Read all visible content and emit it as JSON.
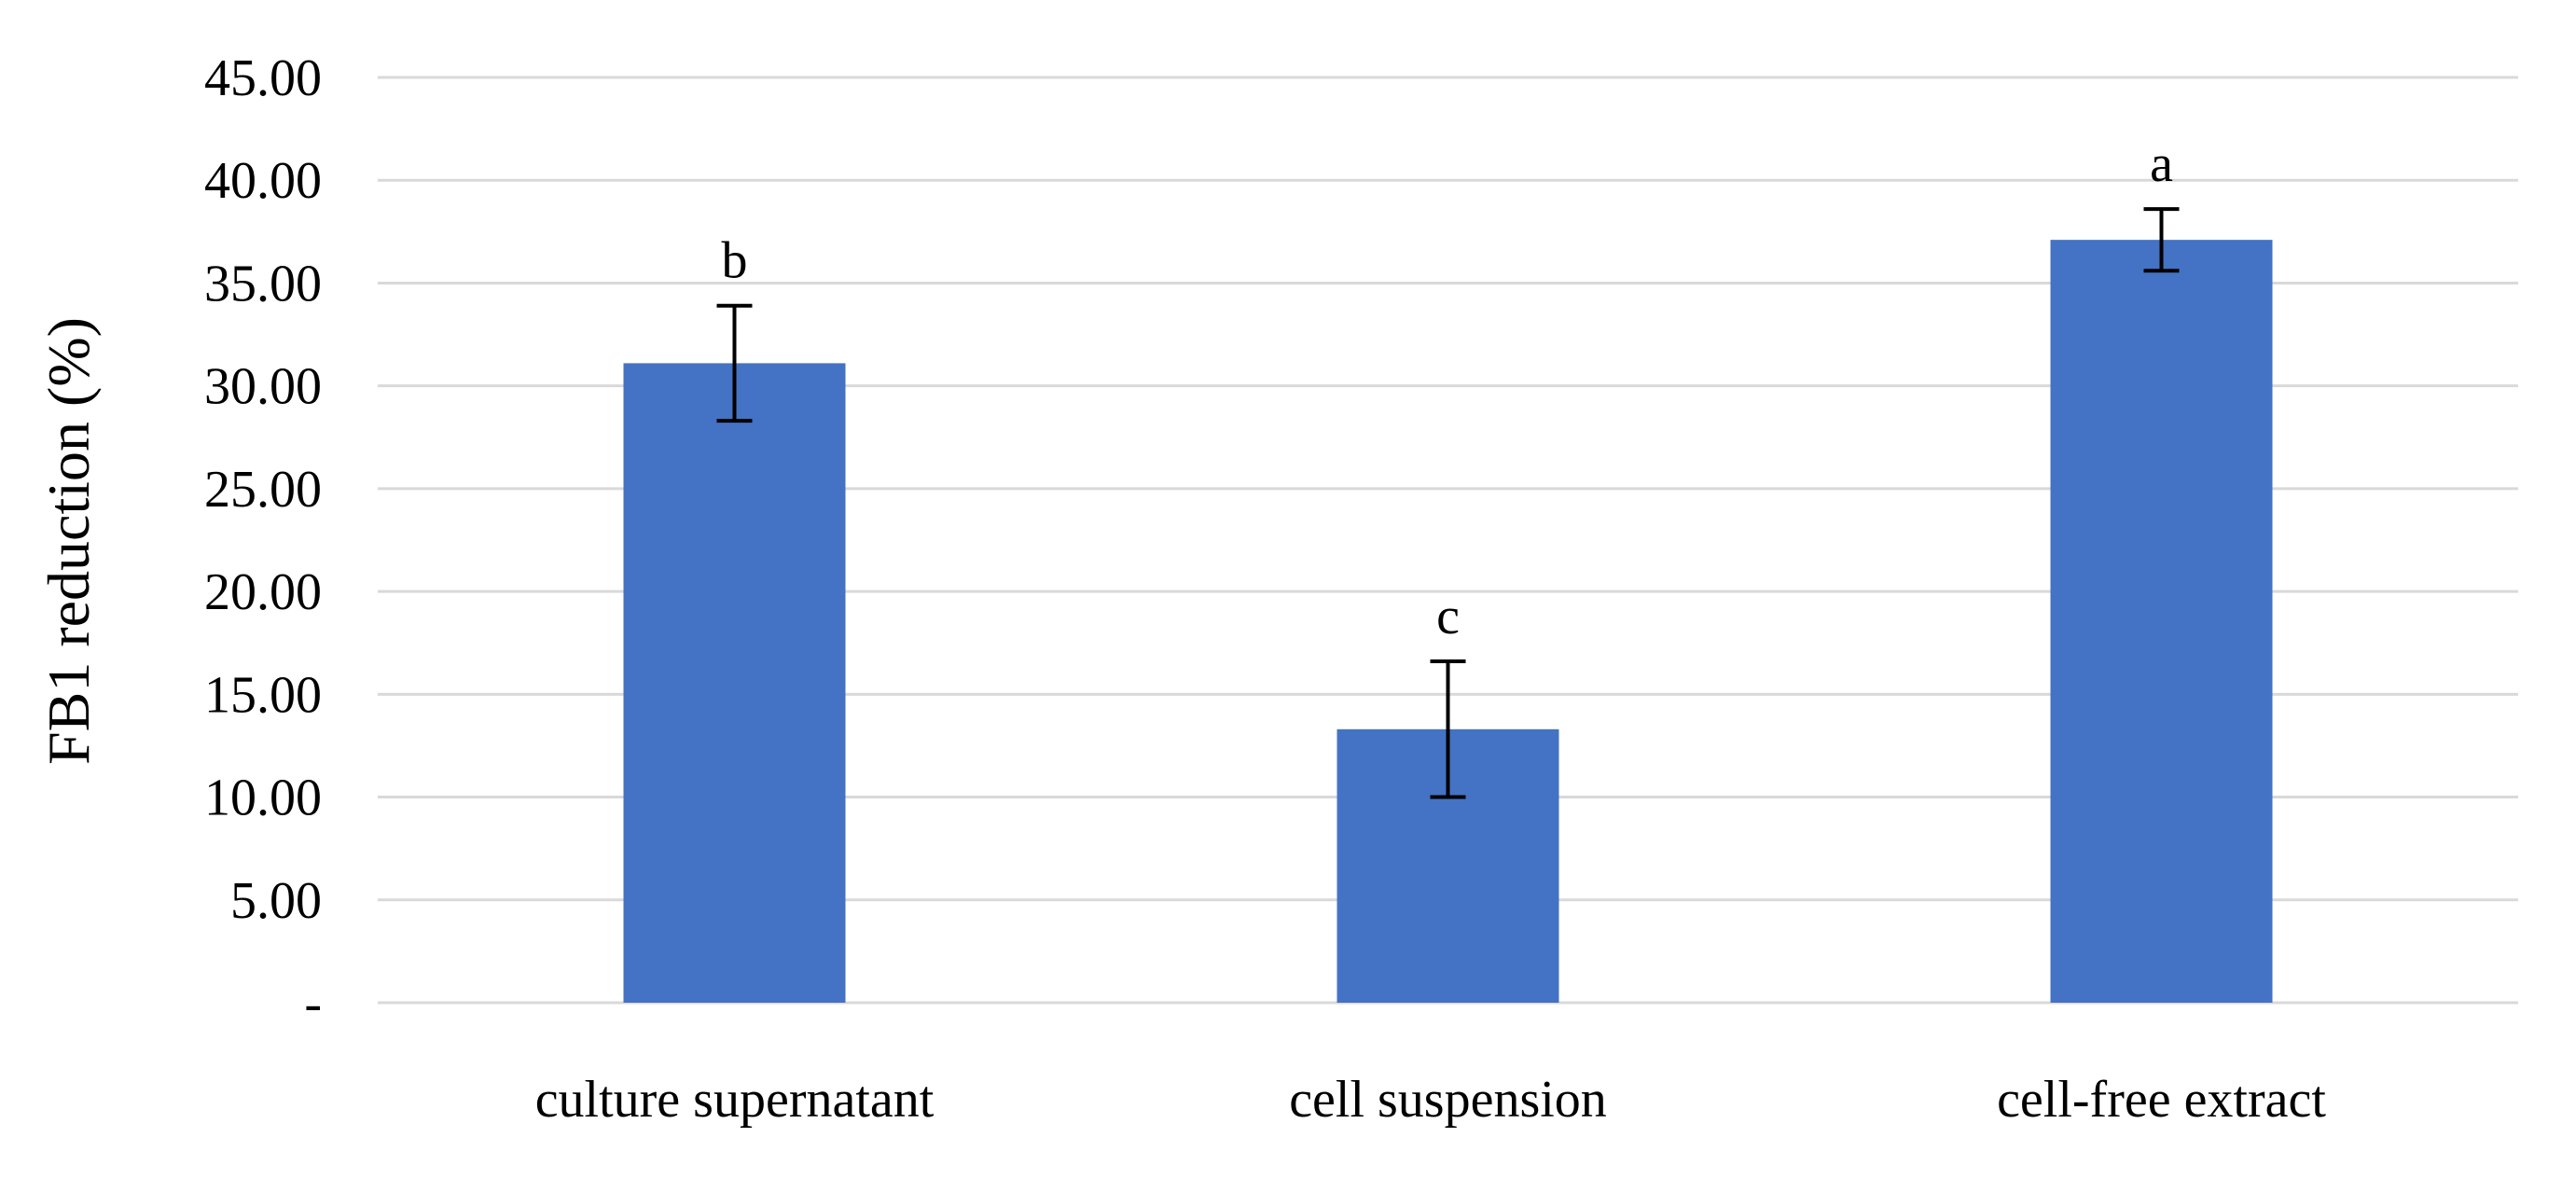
{
  "chart_data": {
    "type": "bar",
    "categories": [
      "culture supernatant",
      "cell suspension",
      "cell-free extract"
    ],
    "values": [
      31.1,
      13.3,
      37.1
    ],
    "errors": [
      2.8,
      3.3,
      1.5
    ],
    "significance_labels": [
      "b",
      "c",
      "a"
    ],
    "title": "",
    "xlabel": "",
    "ylabel": "FB1  reduction (%)",
    "ylim": [
      0,
      45
    ],
    "yticks": [
      0,
      5,
      10,
      15,
      20,
      25,
      30,
      35,
      40,
      45
    ],
    "ytick_labels": [
      "-",
      "5.00",
      "10.00",
      "15.00",
      "20.00",
      "25.00",
      "30.00",
      "35.00",
      "40.00",
      "45.00"
    ],
    "grid": true,
    "legend": "none",
    "colors": {
      "bar": "#4472C4",
      "grid": "#D9D9D9",
      "error_bar": "#000000",
      "text": "#000000"
    }
  }
}
